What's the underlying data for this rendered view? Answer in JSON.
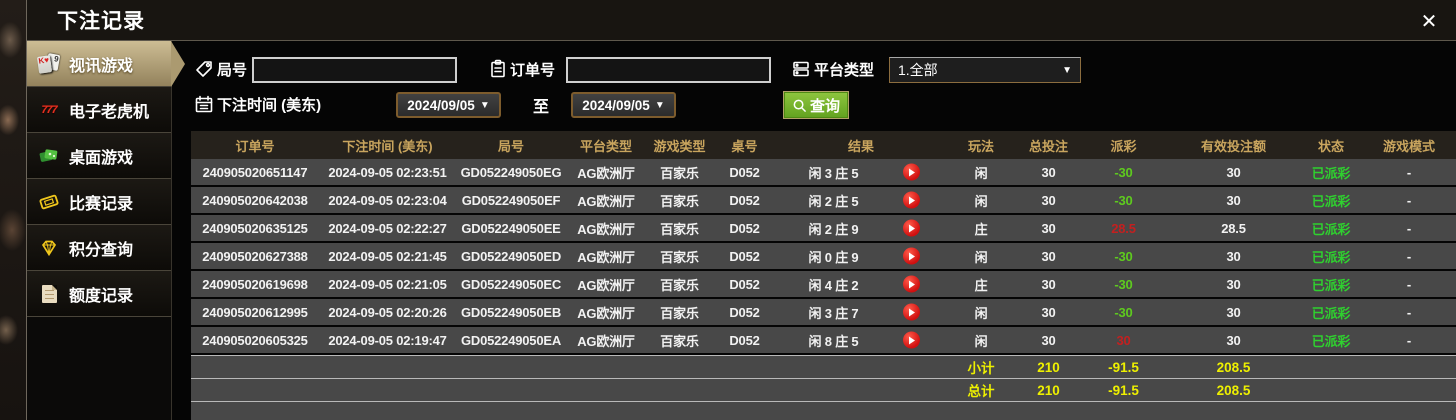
{
  "titlebar": {
    "title": "下注记录",
    "close_icon": "✕"
  },
  "sidebar": {
    "items": [
      {
        "label": "视讯游戏",
        "icon": "playing-cards-icon",
        "active": true
      },
      {
        "label": "电子老虎机",
        "icon": "slot-777-icon",
        "active": false
      },
      {
        "label": "桌面游戏",
        "icon": "green-cards-icon",
        "active": false
      },
      {
        "label": "比赛记录",
        "icon": "ticket-icon",
        "active": false
      },
      {
        "label": "积分查询",
        "icon": "diamond-icon",
        "active": false
      },
      {
        "label": "额度记录",
        "icon": "document-icon",
        "active": false
      }
    ]
  },
  "filters": {
    "round_label": "局号",
    "round_value": "",
    "order_label": "订单号",
    "order_value": "",
    "platform_label": "平台类型",
    "platform_value": "1.全部",
    "platform_arrow": "▼",
    "time_label": "下注时间 (美东)",
    "date_from": "2024/09/05",
    "date_to": "2024/09/05",
    "date_arrow": "▼",
    "to_label": "至",
    "query_label": "查询"
  },
  "table": {
    "columns": [
      "订单号",
      "下注时间 (美东)",
      "局号",
      "平台类型",
      "游戏类型",
      "桌号",
      "结果",
      "玩法",
      "总投注",
      "派彩",
      "有效投注额",
      "状态",
      "游戏模式"
    ],
    "rows": [
      {
        "order_no": "240905020651147",
        "bet_time": "2024-09-05 02:23:51",
        "round_no": "GD052249050EG",
        "platform": "AG欧洲厅",
        "game_type": "百家乐",
        "table_no": "D052",
        "result": "闲 3 庄 5",
        "play": "闲",
        "total_bet": "30",
        "payout": "-30",
        "valid_bet": "30",
        "status": "已派彩",
        "game_mode": "-"
      },
      {
        "order_no": "240905020642038",
        "bet_time": "2024-09-05 02:23:04",
        "round_no": "GD052249050EF",
        "platform": "AG欧洲厅",
        "game_type": "百家乐",
        "table_no": "D052",
        "result": "闲 2 庄 5",
        "play": "闲",
        "total_bet": "30",
        "payout": "-30",
        "valid_bet": "30",
        "status": "已派彩",
        "game_mode": "-"
      },
      {
        "order_no": "240905020635125",
        "bet_time": "2024-09-05 02:22:27",
        "round_no": "GD052249050EE",
        "platform": "AG欧洲厅",
        "game_type": "百家乐",
        "table_no": "D052",
        "result": "闲 2 庄 9",
        "play": "庄",
        "total_bet": "30",
        "payout": "28.5",
        "valid_bet": "28.5",
        "status": "已派彩",
        "game_mode": "-"
      },
      {
        "order_no": "240905020627388",
        "bet_time": "2024-09-05 02:21:45",
        "round_no": "GD052249050ED",
        "platform": "AG欧洲厅",
        "game_type": "百家乐",
        "table_no": "D052",
        "result": "闲 0 庄 9",
        "play": "闲",
        "total_bet": "30",
        "payout": "-30",
        "valid_bet": "30",
        "status": "已派彩",
        "game_mode": "-"
      },
      {
        "order_no": "240905020619698",
        "bet_time": "2024-09-05 02:21:05",
        "round_no": "GD052249050EC",
        "platform": "AG欧洲厅",
        "game_type": "百家乐",
        "table_no": "D052",
        "result": "闲 4 庄 2",
        "play": "庄",
        "total_bet": "30",
        "payout": "-30",
        "valid_bet": "30",
        "status": "已派彩",
        "game_mode": "-"
      },
      {
        "order_no": "240905020612995",
        "bet_time": "2024-09-05 02:20:26",
        "round_no": "GD052249050EB",
        "platform": "AG欧洲厅",
        "game_type": "百家乐",
        "table_no": "D052",
        "result": "闲 3 庄 7",
        "play": "闲",
        "total_bet": "30",
        "payout": "-30",
        "valid_bet": "30",
        "status": "已派彩",
        "game_mode": "-"
      },
      {
        "order_no": "240905020605325",
        "bet_time": "2024-09-05 02:19:47",
        "round_no": "GD052249050EA",
        "platform": "AG欧洲厅",
        "game_type": "百家乐",
        "table_no": "D052",
        "result": "闲 8 庄 5",
        "play": "闲",
        "total_bet": "30",
        "payout": "30",
        "valid_bet": "30",
        "status": "已派彩",
        "game_mode": "-"
      }
    ],
    "subtotal": {
      "label": "小计",
      "total_bet": "210",
      "payout": "-91.5",
      "valid_bet": "208.5"
    },
    "total": {
      "label": "总计",
      "total_bet": "210",
      "payout": "-91.5",
      "valid_bet": "208.5"
    }
  },
  "colors": {
    "header_gold": "#c9a55e",
    "summary_yellow": "#eef000",
    "payout_negative_green": "#5ecb1e",
    "payout_positive_red": "#c32020",
    "status_paid_green": "#2fd02f",
    "active_tab_tan": "#b7a77c",
    "query_button_green": "#76b82a",
    "date_border_brown": "#7d5c2d"
  }
}
